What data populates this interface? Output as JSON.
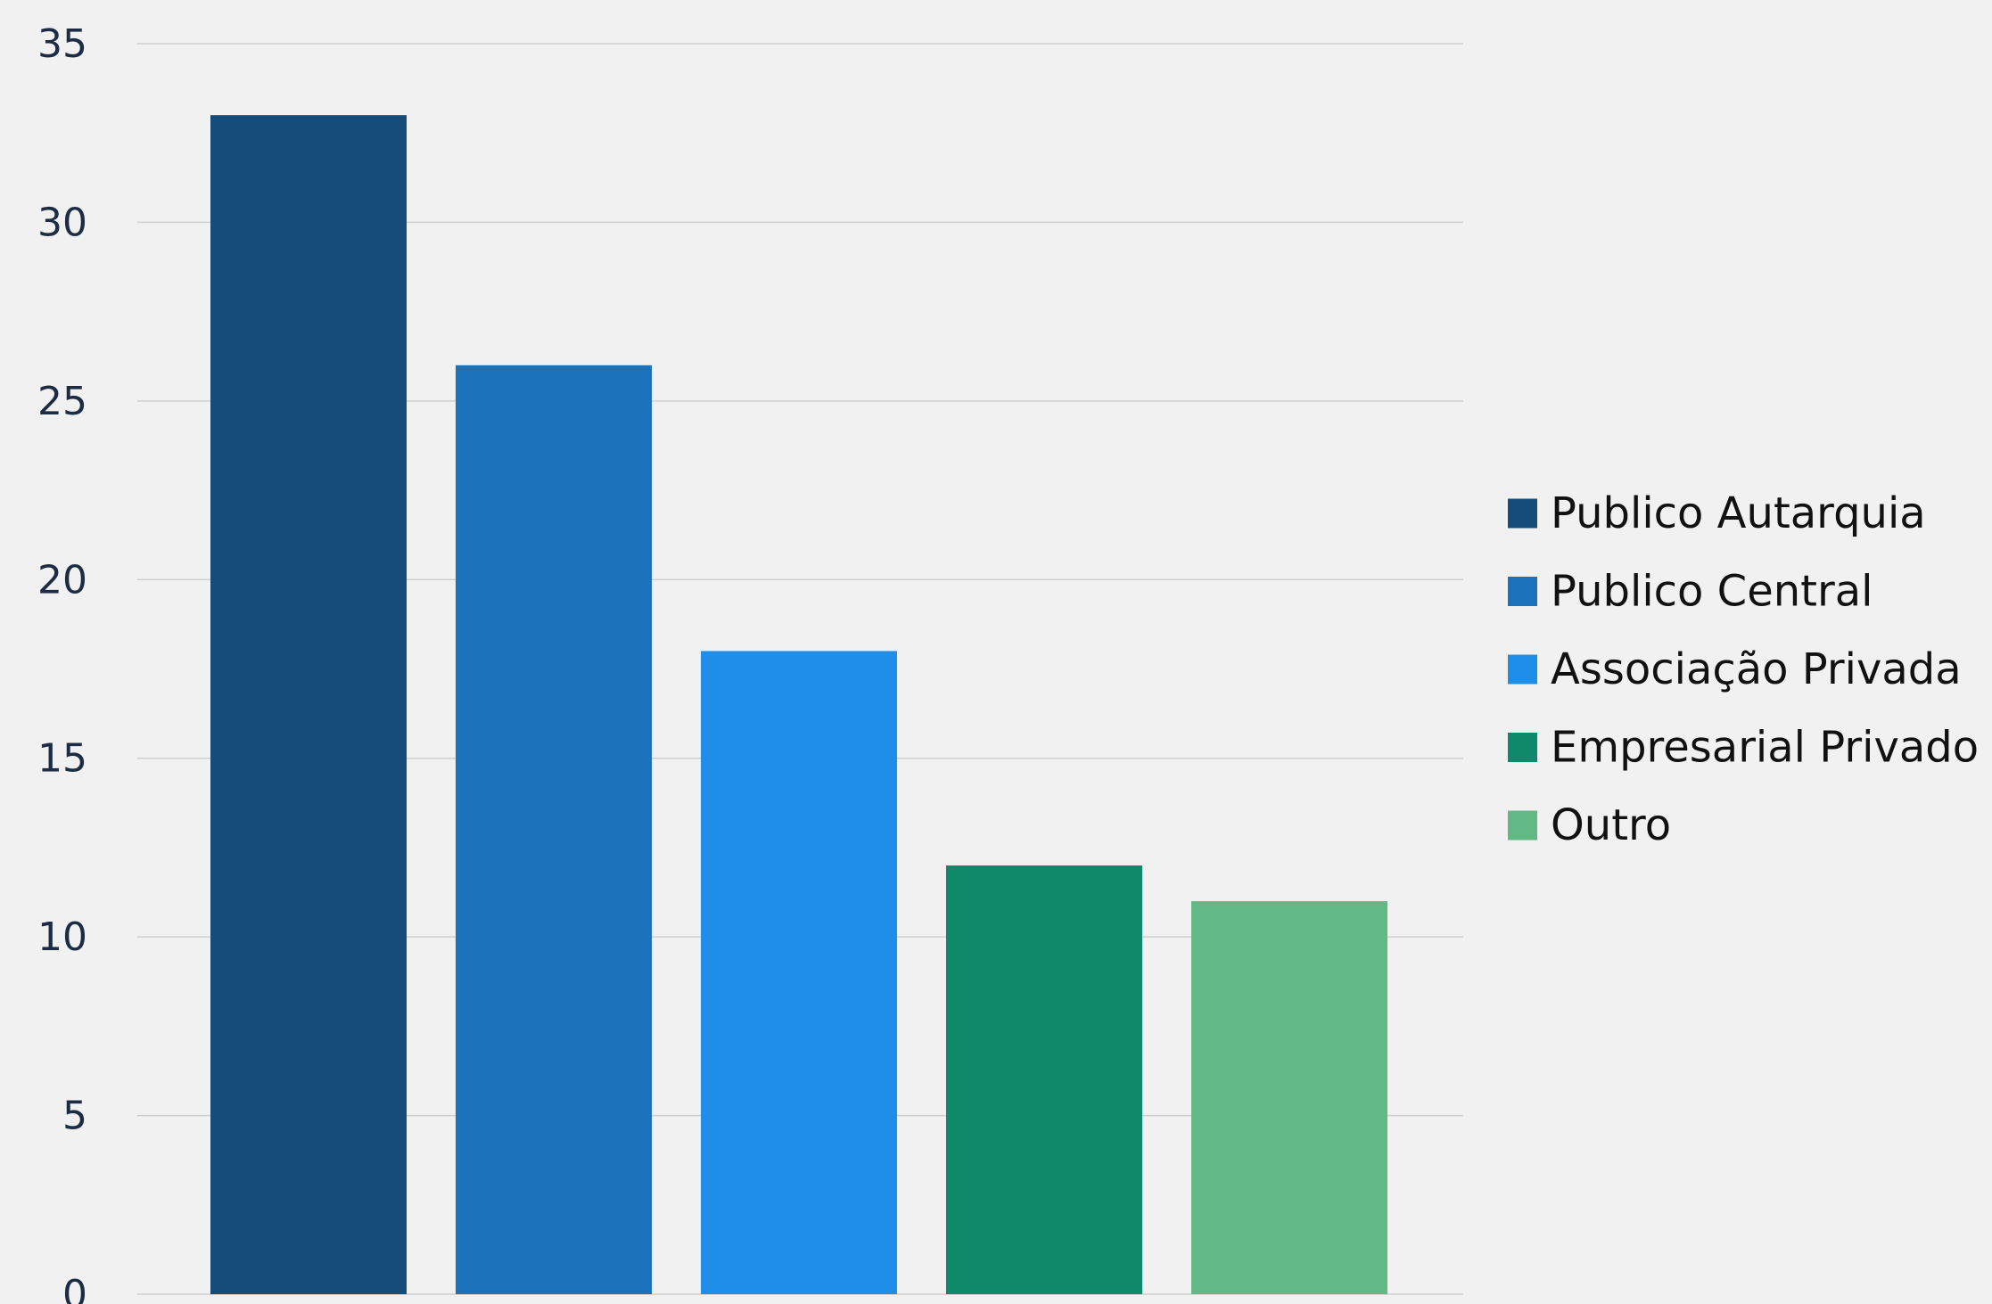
{
  "chart_data": {
    "type": "bar",
    "title": "",
    "xlabel": "",
    "ylabel": "",
    "ylim": [
      0,
      35
    ],
    "yticks": [
      0,
      5,
      10,
      15,
      20,
      25,
      30,
      35
    ],
    "grid": true,
    "legend_position": "right",
    "categories": [
      "Publico Autarquia",
      "Publico Central",
      "Associação Privada",
      "Empresarial Privado",
      "Outro"
    ],
    "values": [
      33,
      26,
      18,
      12,
      11
    ],
    "colors": [
      "#154c7a",
      "#1b71ba",
      "#1f8ee8",
      "#0e896a",
      "#62b986"
    ]
  }
}
